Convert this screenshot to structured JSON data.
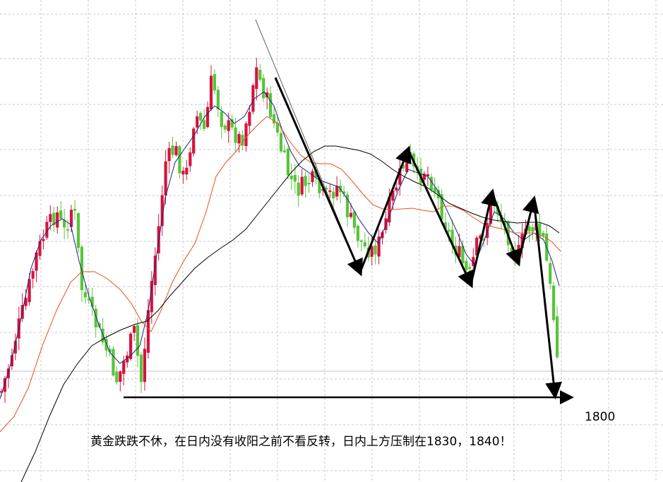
{
  "colors": {
    "up_candle": "#d4143c",
    "down_candle": "#58c43a",
    "ma_short": "#1a237e",
    "ma_medium": "#e8501a",
    "ma_long": "#000000",
    "trend_arrows": "#000000",
    "thin_trend_line": "#606060",
    "grid": "#c8c8c8"
  },
  "chart_data": {
    "type": "candlestick",
    "instrument": "黄金",
    "grid": true,
    "price_label": "1800",
    "annotation": "黄金跌跌不休，在日内没有收阳之前不看反转，日内上方压制在1830，1840！",
    "series": [
      {
        "type": "candlestick"
      },
      {
        "type": "line"
      },
      {
        "type": "line"
      },
      {
        "type": "line"
      }
    ],
    "trend_pattern": "down-up-down-up-down-up-down-up-down",
    "support_level": 1800,
    "resistance_levels": [
      1830,
      1840
    ]
  }
}
